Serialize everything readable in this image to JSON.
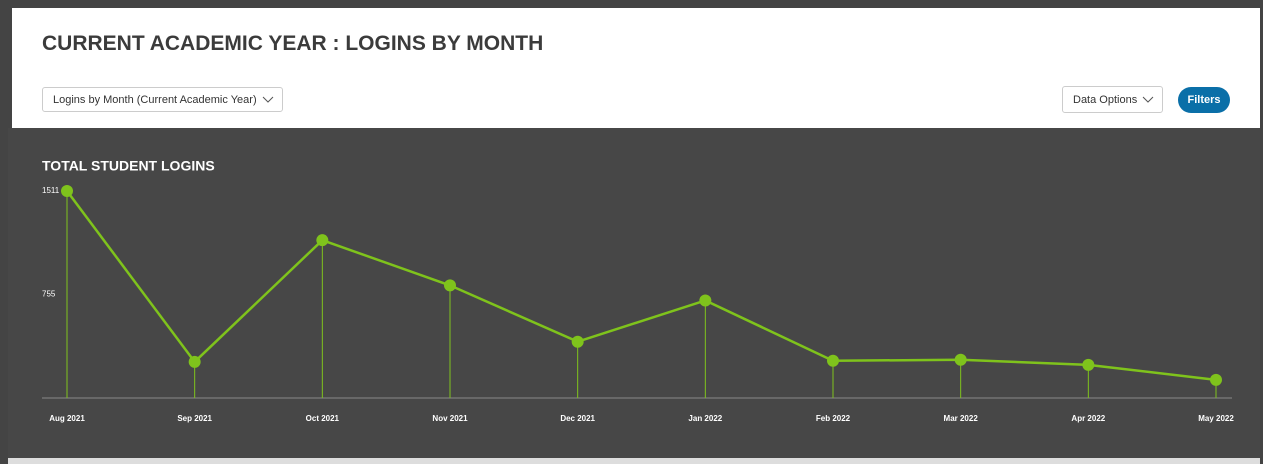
{
  "header": {
    "title": "CURRENT ACADEMIC YEAR : LOGINS BY MONTH",
    "dropdown": "Logins by Month (Current Academic Year)",
    "data_options": "Data Options",
    "filters": "Filters"
  },
  "chart_data": {
    "type": "line",
    "title": "TOTAL STUDENT LOGINS",
    "categories": [
      "Aug 2021",
      "Sep 2021",
      "Oct 2021",
      "Nov 2021",
      "Dec 2021",
      "Jan 2022",
      "Feb 2022",
      "Mar 2022",
      "Apr 2022",
      "May 2022"
    ],
    "values": [
      1511,
      264,
      1152,
      822,
      411,
      712,
      272,
      279,
      242,
      132
    ],
    "color": "#7fc31c",
    "ylim": [
      0,
      1511
    ],
    "yticks": [
      755,
      1511
    ],
    "grid": false
  }
}
